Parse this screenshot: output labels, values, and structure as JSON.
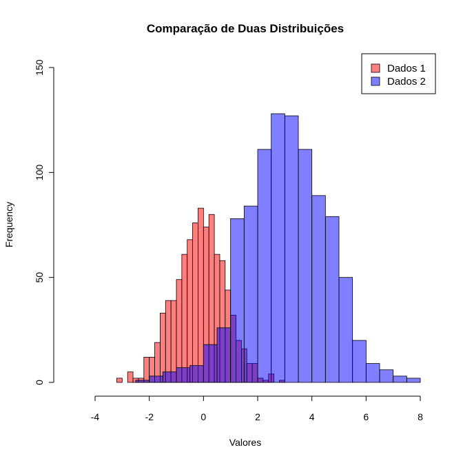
{
  "chart_data": {
    "type": "bar",
    "title": "Comparação de Duas Distribuições",
    "xlabel": "Valores",
    "ylabel": "Frequency",
    "xlim": [
      -4,
      8
    ],
    "ylim": [
      0,
      150
    ],
    "x_ticks": [
      -4,
      -2,
      0,
      2,
      4,
      6,
      8
    ],
    "y_ticks": [
      0,
      50,
      100,
      150
    ],
    "legend": {
      "position": "top-right",
      "entries": [
        {
          "name": "Dados 1",
          "color": "#ff7f7f"
        },
        {
          "name": "Dados 2",
          "color": "#7f7fff"
        }
      ]
    },
    "series": [
      {
        "name": "Dados 1",
        "color": "#ff7f7f",
        "bin_width": 0.2,
        "bins": [
          {
            "x0": -3.2,
            "value": 2
          },
          {
            "x0": -3.0,
            "value": 0
          },
          {
            "x0": -2.8,
            "value": 5
          },
          {
            "x0": -2.6,
            "value": 2
          },
          {
            "x0": -2.4,
            "value": 2
          },
          {
            "x0": -2.2,
            "value": 12
          },
          {
            "x0": -2.0,
            "value": 12
          },
          {
            "x0": -1.8,
            "value": 19
          },
          {
            "x0": -1.6,
            "value": 33
          },
          {
            "x0": -1.4,
            "value": 39
          },
          {
            "x0": -1.2,
            "value": 39
          },
          {
            "x0": -1.0,
            "value": 49
          },
          {
            "x0": -0.8,
            "value": 61
          },
          {
            "x0": -0.6,
            "value": 68
          },
          {
            "x0": -0.4,
            "value": 76
          },
          {
            "x0": -0.2,
            "value": 83
          },
          {
            "x0": 0.0,
            "value": 74
          },
          {
            "x0": 0.2,
            "value": 80
          },
          {
            "x0": 0.4,
            "value": 61
          },
          {
            "x0": 0.6,
            "value": 58
          },
          {
            "x0": 0.8,
            "value": 44
          },
          {
            "x0": 1.0,
            "value": 32
          },
          {
            "x0": 1.2,
            "value": 20
          },
          {
            "x0": 1.4,
            "value": 16
          },
          {
            "x0": 1.6,
            "value": 9
          },
          {
            "x0": 1.8,
            "value": 9
          },
          {
            "x0": 2.0,
            "value": 2
          },
          {
            "x0": 2.2,
            "value": 1
          },
          {
            "x0": 2.4,
            "value": 4
          },
          {
            "x0": 2.6,
            "value": 0
          },
          {
            "x0": 2.8,
            "value": 1
          }
        ]
      },
      {
        "name": "Dados 2",
        "color": "#7f7fff",
        "bin_width": 0.5,
        "bins": [
          {
            "x0": -2.5,
            "value": 1
          },
          {
            "x0": -2.0,
            "value": 3
          },
          {
            "x0": -1.5,
            "value": 5
          },
          {
            "x0": -1.0,
            "value": 7
          },
          {
            "x0": -0.5,
            "value": 8
          },
          {
            "x0": 0.0,
            "value": 18
          },
          {
            "x0": 0.5,
            "value": 26
          },
          {
            "x0": 1.0,
            "value": 78
          },
          {
            "x0": 1.5,
            "value": 84
          },
          {
            "x0": 2.0,
            "value": 111
          },
          {
            "x0": 2.5,
            "value": 128
          },
          {
            "x0": 3.0,
            "value": 127
          },
          {
            "x0": 3.5,
            "value": 111
          },
          {
            "x0": 4.0,
            "value": 89
          },
          {
            "x0": 4.5,
            "value": 79
          },
          {
            "x0": 5.0,
            "value": 50
          },
          {
            "x0": 5.5,
            "value": 20
          },
          {
            "x0": 6.0,
            "value": 9
          },
          {
            "x0": 6.5,
            "value": 6
          },
          {
            "x0": 7.0,
            "value": 3
          },
          {
            "x0": 7.5,
            "value": 2
          }
        ]
      }
    ]
  }
}
